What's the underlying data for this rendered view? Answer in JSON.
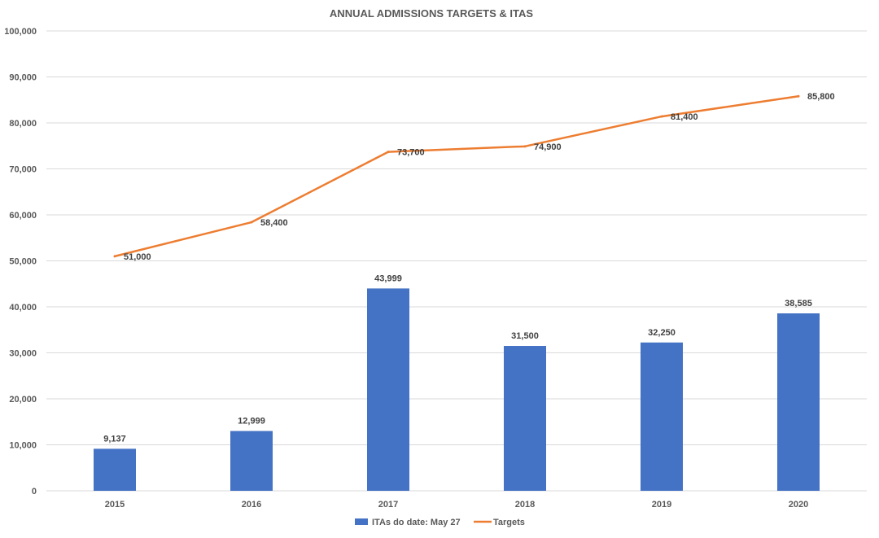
{
  "chart_data": {
    "type": "bar",
    "title": "ANNUAL ADMISSIONS TARGETS & ITAS",
    "categories": [
      "2015",
      "2016",
      "2017",
      "2018",
      "2019",
      "2020"
    ],
    "ylim": [
      0,
      100000
    ],
    "y_ticks": [
      {
        "value": 0,
        "label": "0"
      },
      {
        "value": 10000,
        "label": "10,000"
      },
      {
        "value": 20000,
        "label": "20,000"
      },
      {
        "value": 30000,
        "label": "30,000"
      },
      {
        "value": 40000,
        "label": "40,000"
      },
      {
        "value": 50000,
        "label": "50,000"
      },
      {
        "value": 60000,
        "label": "60,000"
      },
      {
        "value": 70000,
        "label": "70,000"
      },
      {
        "value": 80000,
        "label": "80,000"
      },
      {
        "value": 90000,
        "label": "90,000"
      },
      {
        "value": 100000,
        "label": "100,000"
      }
    ],
    "grid": true,
    "legend_position": "bottom",
    "series": [
      {
        "name": "ITAs do date: May 27",
        "type": "bar",
        "color": "#4472c4",
        "values": [
          9137,
          12999,
          43999,
          31500,
          32250,
          38585
        ],
        "labels": [
          "9,137",
          "12,999",
          "43,999",
          "31,500",
          "32,250",
          "38,585"
        ]
      },
      {
        "name": "Targets",
        "type": "line",
        "color": "#ed7d31",
        "values": [
          51000,
          58400,
          73700,
          74900,
          81400,
          85800
        ],
        "labels": [
          "51,000",
          "58,400",
          "73,700",
          "74,900",
          "81,400",
          "85,800"
        ]
      }
    ]
  }
}
